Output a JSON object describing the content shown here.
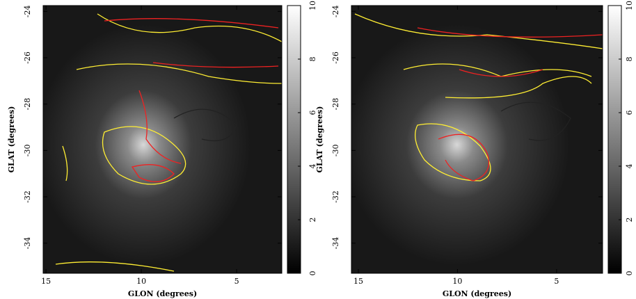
{
  "chart_data": [
    {
      "type": "image",
      "xlabel": "GLON (degrees)",
      "ylabel": "GLAT (degrees)",
      "xlim": [
        15.15,
        2.63
      ],
      "ylim": [
        -35.3,
        -23.75
      ],
      "xticks": [
        15,
        10,
        5
      ],
      "yticks": [
        -24,
        -26,
        -28,
        -30,
        -32,
        -34
      ],
      "clim": [
        0,
        10
      ],
      "cticks": [
        0,
        2,
        4,
        6,
        8,
        10
      ]
    },
    {
      "type": "image",
      "xlabel": "GLON (degrees)",
      "ylabel": "GLAT (degrees)",
      "xlim": [
        15.35,
        2.68
      ],
      "ylim": [
        -35.3,
        -23.75
      ],
      "xticks": [
        15,
        10,
        5
      ],
      "yticks": [
        -24,
        -26,
        -28,
        -30,
        -32,
        -34
      ],
      "clim": [
        0,
        10
      ],
      "cticks": [
        0,
        2,
        4,
        6,
        8,
        10
      ]
    }
  ]
}
